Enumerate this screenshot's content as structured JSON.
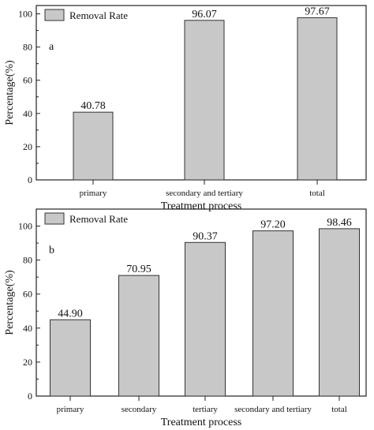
{
  "colors": {
    "bar_fill": "#c8c8c8",
    "bar_stroke": "#333333",
    "axis": "#222222"
  },
  "chart_data": [
    {
      "type": "bar",
      "panel_label": "a",
      "categories": [
        "primary",
        "secondary and tertiary",
        "total"
      ],
      "series": [
        {
          "name": "Removal Rate",
          "values": [
            40.78,
            96.07,
            97.67
          ]
        }
      ],
      "data_labels": [
        "40.78",
        "96.07",
        "97.67"
      ],
      "xlabel": "Treatment process",
      "ylabel": "Percentage(%)",
      "ylim": [
        0,
        105
      ],
      "yticks": [
        0,
        20,
        40,
        60,
        80,
        100
      ],
      "grid": false,
      "legend": "top-left"
    },
    {
      "type": "bar",
      "panel_label": "b",
      "categories": [
        "primary",
        "secondary",
        "tertiary",
        "secondary and tertiary",
        "total"
      ],
      "series": [
        {
          "name": "Removal Rate",
          "values": [
            44.9,
            70.95,
            90.37,
            97.2,
            98.46
          ]
        }
      ],
      "data_labels": [
        "44.90",
        "70.95",
        "90.37",
        "97.20",
        "98.46"
      ],
      "xlabel": "Treatment process",
      "ylabel": "Percentage(%)",
      "ylim": [
        0,
        110
      ],
      "yticks": [
        0,
        20,
        40,
        60,
        80,
        100
      ],
      "grid": false,
      "legend": "top-left"
    }
  ]
}
